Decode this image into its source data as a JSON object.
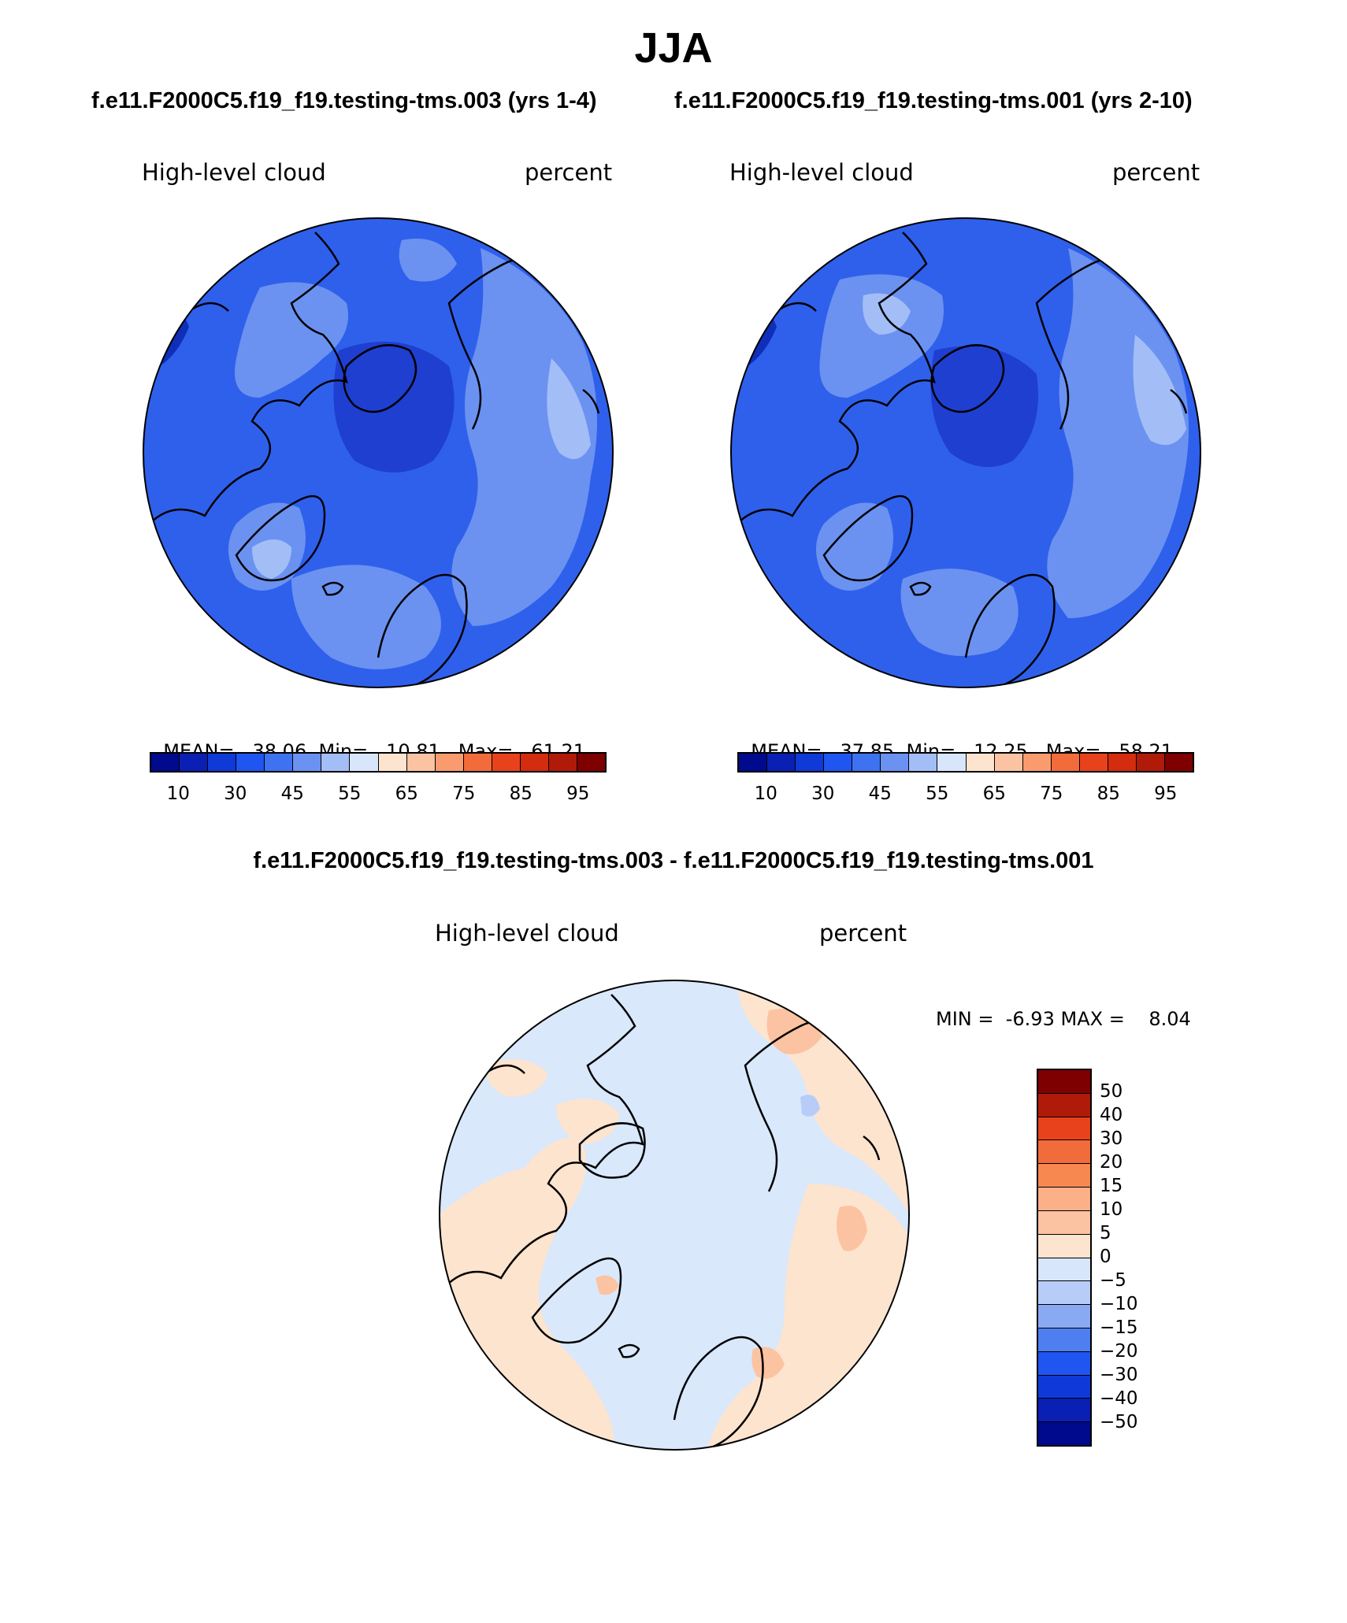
{
  "season": "JJA",
  "panels": [
    {
      "case": "f.e11.F2000C5.f19_f19.testing-tms.003 (yrs 1-4)",
      "variable": "High-level cloud",
      "units": "percent",
      "mean_label": "MEAN=",
      "mean": "38.06",
      "min_label": "Min=",
      "min": "10.81",
      "max_label": "Max=",
      "max": "61.21"
    },
    {
      "case": "f.e11.F2000C5.f19_f19.testing-tms.001 (yrs 2-10)",
      "variable": "High-level cloud",
      "units": "percent",
      "mean_label": "MEAN=",
      "mean": "37.85",
      "min_label": "Min=",
      "min": "12.25",
      "max_label": "Max=",
      "max": "58.21"
    }
  ],
  "diff": {
    "title": "f.e11.F2000C5.f19_f19.testing-tms.003 - f.e11.F2000C5.f19_f19.testing-tms.001",
    "variable": "High-level cloud",
    "units": "percent",
    "min_label": "MIN =",
    "min": "-6.93",
    "max_label": "MAX =",
    "max": "8.04"
  },
  "colorbar": {
    "ticks": [
      "10",
      "30",
      "45",
      "55",
      "65",
      "75",
      "85",
      "95"
    ],
    "colors": [
      "#000a8c",
      "#0a1fb4",
      "#0f3ad7",
      "#1f55f0",
      "#3f72f0",
      "#6b92f0",
      "#a3bdf7",
      "#d7e6fb",
      "#fde4cf",
      "#fcc3a2",
      "#f99b6f",
      "#f26b3b",
      "#e8421c",
      "#d32c0e",
      "#b01a09",
      "#7f0000"
    ]
  },
  "diff_colorbar": {
    "ticks": [
      "50",
      "40",
      "30",
      "20",
      "15",
      "10",
      "5",
      "0",
      "−5",
      "−10",
      "−15",
      "−20",
      "−30",
      "−40",
      "−50"
    ],
    "colors": [
      "#7f0000",
      "#b01a09",
      "#e8421c",
      "#f26b3b",
      "#f7884f",
      "#fcb08a",
      "#fcc3a2",
      "#fde4cf",
      "#d7e6fb",
      "#b7cdf8",
      "#8aa9f3",
      "#4f7ef0",
      "#1f55f0",
      "#0f3ad7",
      "#0a1fb4",
      "#000a8c"
    ]
  },
  "colors": {
    "map_base": "#2f60ec",
    "diff_base": "#d9e8fb",
    "coast": "#000000"
  }
}
